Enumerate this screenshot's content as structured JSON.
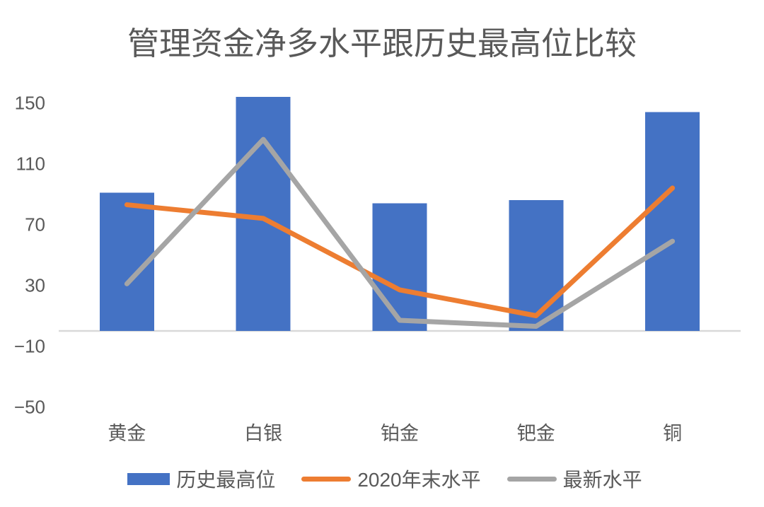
{
  "chart_data": {
    "type": "combo-bar-line",
    "title": "管理资金净多水平跟历史最高位比较",
    "categories": [
      "黄金",
      "白银",
      "铂金",
      "钯金",
      "铜"
    ],
    "series": [
      {
        "name": "历史最高位",
        "type": "bar",
        "color": "#4472C4",
        "values": [
          91,
          154,
          84,
          86,
          144
        ]
      },
      {
        "name": "2020年末水平",
        "type": "line",
        "color": "#ED7D31",
        "values": [
          83,
          74,
          27,
          10,
          94
        ]
      },
      {
        "name": "最新水平",
        "type": "line",
        "color": "#A5A5A5",
        "values": [
          31,
          126,
          7,
          3,
          59
        ]
      }
    ],
    "y_ticks": [
      150,
      110,
      70,
      30,
      -10,
      -50
    ],
    "ylim": [
      -50,
      158
    ],
    "xlabel": "",
    "ylabel": "",
    "grid": false,
    "legend_position": "bottom",
    "axis_text_color": "#595959",
    "baseline_color": "#D9D9D9",
    "background": "#FFFFFF"
  }
}
